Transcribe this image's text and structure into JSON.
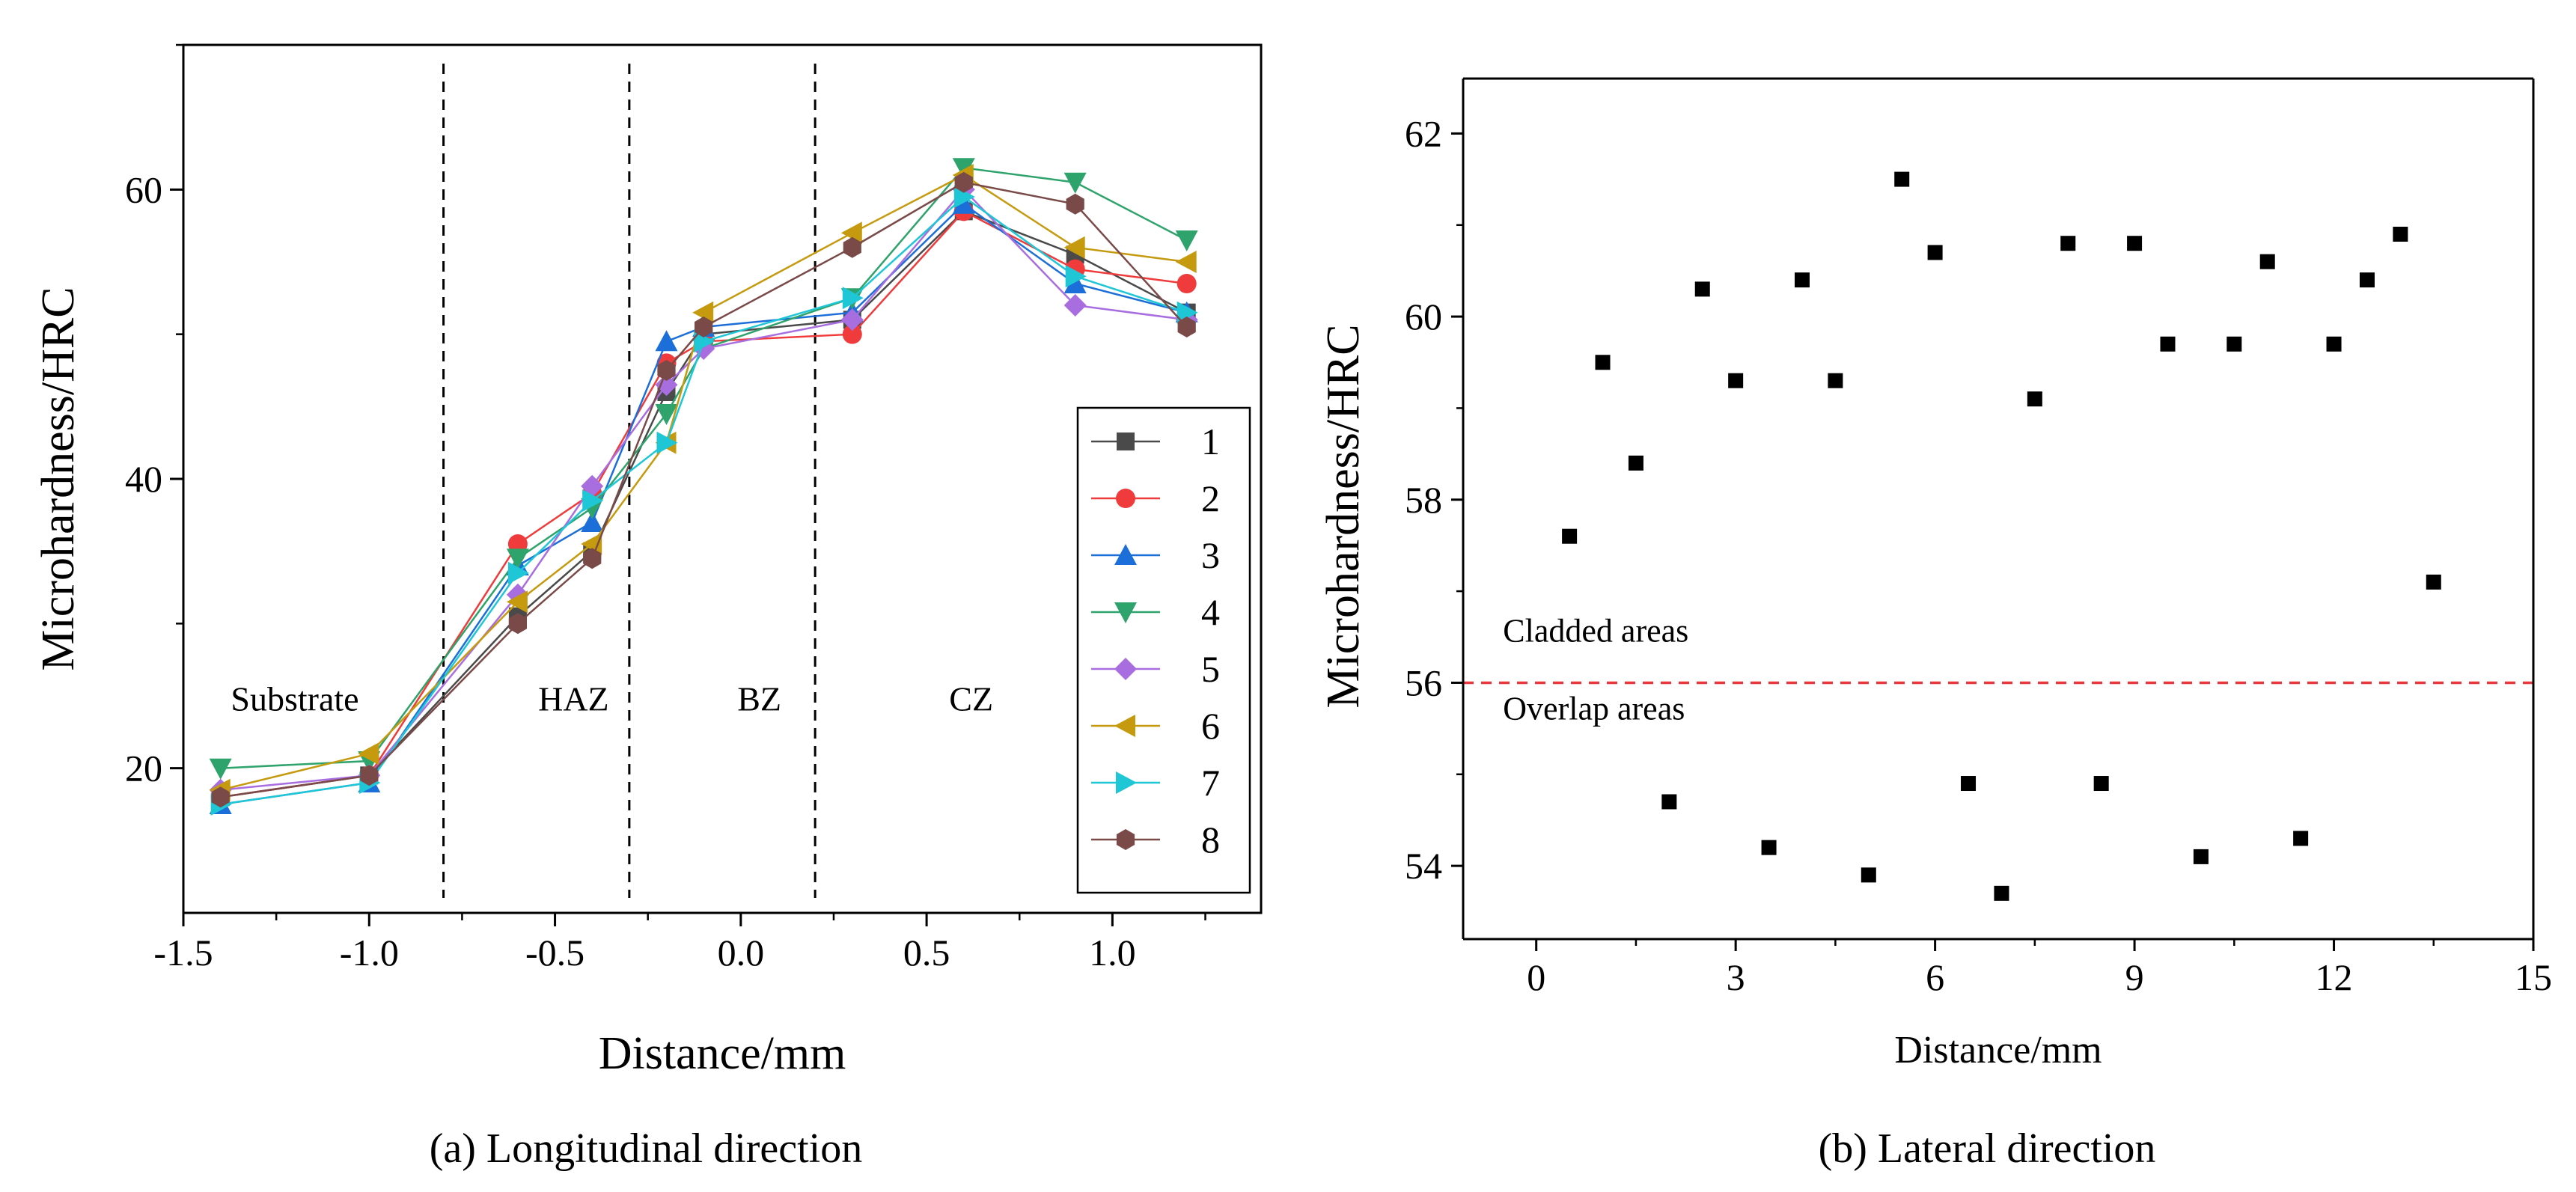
{
  "chart_data": [
    {
      "type": "line",
      "caption": "(a)  Longitudinal direction",
      "xlabel": "Distance/mm",
      "ylabel": "Microhardness/HRC",
      "xlim": [
        -1.5,
        1.4
      ],
      "ylim": [
        10,
        70
      ],
      "xticks": [
        -1.5,
        -1.0,
        -0.5,
        0.0,
        0.5,
        1.0
      ],
      "xtick_labels": [
        "-1.5",
        "-1.0",
        "-0.5",
        "0.0",
        "0.5",
        "1.0"
      ],
      "yticks": [
        20,
        40,
        60
      ],
      "ytick_labels": [
        "20",
        "40",
        "60"
      ],
      "boundaries": [
        -0.8,
        -0.3,
        0.2
      ],
      "regions": [
        {
          "label": "Substrate",
          "x": -1.2,
          "y": 24
        },
        {
          "label": "HAZ",
          "x": -0.45,
          "y": 24
        },
        {
          "label": "BZ",
          "x": 0.05,
          "y": 24
        },
        {
          "label": "CZ",
          "x": 0.62,
          "y": 24
        }
      ],
      "x": [
        -1.4,
        -1.0,
        -0.6,
        -0.4,
        -0.2,
        -0.1,
        0.3,
        0.6,
        0.9,
        1.2
      ],
      "legend_position": "bottom-right",
      "series": [
        {
          "name": "1",
          "color": "#4a4a4a",
          "marker": "square",
          "values": [
            18.0,
            19.5,
            30.5,
            35.0,
            46.0,
            50.0,
            51.0,
            58.5,
            55.5,
            51.5
          ]
        },
        {
          "name": "2",
          "color": "#ef3b3b",
          "marker": "circle",
          "values": [
            18.0,
            19.5,
            35.5,
            39.0,
            48.0,
            49.5,
            50.0,
            58.5,
            54.5,
            53.5
          ]
        },
        {
          "name": "3",
          "color": "#1c6fd8",
          "marker": "triangle-up",
          "values": [
            17.5,
            19.0,
            34.0,
            37.0,
            49.5,
            50.5,
            51.5,
            59.0,
            53.5,
            51.5
          ]
        },
        {
          "name": "4",
          "color": "#2ea36b",
          "marker": "triangle-down",
          "values": [
            20.0,
            20.5,
            34.5,
            38.0,
            44.5,
            49.0,
            52.5,
            61.5,
            60.5,
            56.5
          ]
        },
        {
          "name": "5",
          "color": "#a86ee0",
          "marker": "diamond",
          "values": [
            18.5,
            19.5,
            32.0,
            39.5,
            46.5,
            49.0,
            51.0,
            60.0,
            52.0,
            51.0
          ]
        },
        {
          "name": "6",
          "color": "#c59a0e",
          "marker": "triangle-left",
          "values": [
            18.5,
            21.0,
            31.5,
            35.5,
            42.5,
            51.5,
            57.0,
            61.0,
            56.0,
            55.0
          ]
        },
        {
          "name": "7",
          "color": "#1ec6d6",
          "marker": "triangle-right",
          "values": [
            17.5,
            19.0,
            33.5,
            38.5,
            42.5,
            49.5,
            52.5,
            59.5,
            54.0,
            51.5
          ]
        },
        {
          "name": "8",
          "color": "#7a4a48",
          "marker": "hexagon",
          "values": [
            18.0,
            19.5,
            30.0,
            34.5,
            47.5,
            50.5,
            56.0,
            60.5,
            59.0,
            50.5
          ]
        }
      ]
    },
    {
      "type": "scatter",
      "caption": "(b)  Lateral direction",
      "xlabel": "Distance/mm",
      "ylabel": "Microhardness/HRC",
      "xlim": [
        -1.1,
        15
      ],
      "ylim": [
        53.2,
        62.6
      ],
      "xticks": [
        0,
        3,
        6,
        9,
        12,
        15
      ],
      "xtick_labels": [
        "0",
        "3",
        "6",
        "9",
        "12",
        "15"
      ],
      "yticks": [
        54,
        56,
        58,
        60,
        62
      ],
      "ytick_labels": [
        "54",
        "56",
        "58",
        "60",
        "62"
      ],
      "reference_line": {
        "y": 56,
        "color": "#e8373d",
        "style": "dashed"
      },
      "annotations": [
        {
          "text": "Cladded areas",
          "x": -0.5,
          "y": 56.45
        },
        {
          "text": "Overlap areas",
          "x": -0.5,
          "y": 55.6
        }
      ],
      "marker_color": "#000000",
      "points": {
        "x": [
          0.5,
          1.0,
          1.5,
          2.0,
          2.5,
          3.0,
          3.5,
          4.0,
          4.5,
          5.0,
          5.5,
          6.0,
          6.5,
          7.0,
          7.5,
          8.0,
          8.5,
          9.0,
          9.5,
          10.0,
          10.5,
          11.0,
          11.5,
          12.0,
          12.5,
          13.0,
          13.5
        ],
        "y": [
          57.6,
          59.5,
          58.4,
          54.7,
          60.3,
          59.3,
          54.2,
          60.4,
          59.3,
          53.9,
          61.5,
          60.7,
          54.9,
          53.7,
          59.1,
          60.8,
          54.9,
          60.8,
          59.7,
          54.1,
          59.7,
          60.6,
          54.3,
          59.7,
          60.4,
          60.9,
          57.1
        ]
      }
    }
  ]
}
